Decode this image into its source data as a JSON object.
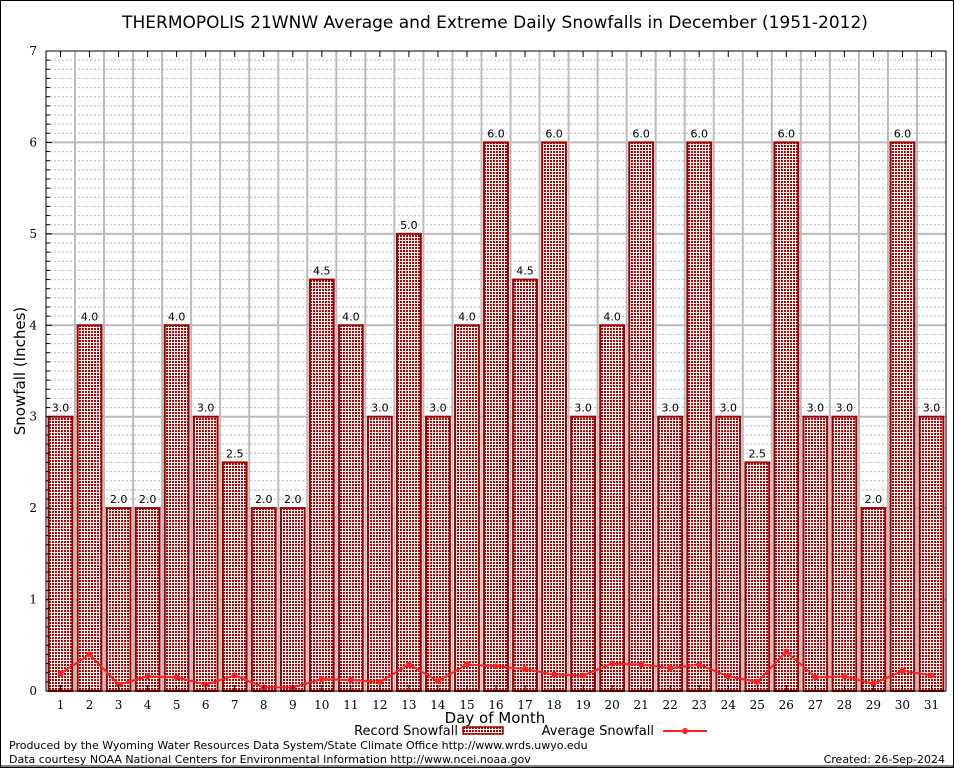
{
  "chart_data": {
    "type": "bar",
    "title": "THERMOPOLIS 21WNW Average and Extreme Daily Snowfalls in December (1951-2012)",
    "xlabel": "Day of Month",
    "ylabel": "Snowfall (Inches)",
    "ylim": [
      0,
      7
    ],
    "yticks": [
      "0",
      "1",
      "2",
      "3",
      "4",
      "5",
      "6",
      "7"
    ],
    "grid": true,
    "legend_position": "bottom-center",
    "categories": [
      "1",
      "2",
      "3",
      "4",
      "5",
      "6",
      "7",
      "8",
      "9",
      "10",
      "11",
      "12",
      "13",
      "14",
      "15",
      "16",
      "17",
      "18",
      "19",
      "20",
      "21",
      "22",
      "23",
      "24",
      "25",
      "26",
      "27",
      "28",
      "29",
      "30",
      "31"
    ],
    "series": [
      {
        "name": "Record Snowfall",
        "type": "bar",
        "color": "#990000",
        "values": [
          3.0,
          4.0,
          2.0,
          2.0,
          4.0,
          3.0,
          2.5,
          2.0,
          2.0,
          4.5,
          4.0,
          3.0,
          5.0,
          3.0,
          4.0,
          6.0,
          4.5,
          6.0,
          3.0,
          4.0,
          6.0,
          3.0,
          6.0,
          3.0,
          2.5,
          6.0,
          3.0,
          3.0,
          2.0,
          6.0,
          3.0
        ],
        "labels": [
          "3.0",
          "4.0",
          "2.0",
          "2.0",
          "4.0",
          "3.0",
          "2.5",
          "2.0",
          "2.0",
          "4.5",
          "4.0",
          "3.0",
          "5.0",
          "3.0",
          "4.0",
          "6.0",
          "4.5",
          "6.0",
          "3.0",
          "4.0",
          "6.0",
          "3.0",
          "6.0",
          "3.0",
          "2.5",
          "6.0",
          "3.0",
          "3.0",
          "2.0",
          "6.0",
          "3.0"
        ]
      },
      {
        "name": "Average Snowfall",
        "type": "line",
        "color": "#ff2020",
        "values": [
          0.19,
          0.4,
          0.07,
          0.16,
          0.15,
          0.07,
          0.17,
          0.04,
          0.04,
          0.13,
          0.12,
          0.1,
          0.29,
          0.11,
          0.29,
          0.27,
          0.24,
          0.18,
          0.17,
          0.3,
          0.29,
          0.25,
          0.29,
          0.16,
          0.1,
          0.43,
          0.15,
          0.16,
          0.08,
          0.22,
          0.17
        ]
      }
    ]
  },
  "footer": {
    "produced_by": "Produced by the Wyoming Water Resources Data System/State Climate Office http://www.wrds.uwyo.edu",
    "courtesy": "Data courtesy NOAA National Centers for Environmental Information http://www.ncei.noaa.gov",
    "created": "Created: 26-Sep-2024"
  }
}
